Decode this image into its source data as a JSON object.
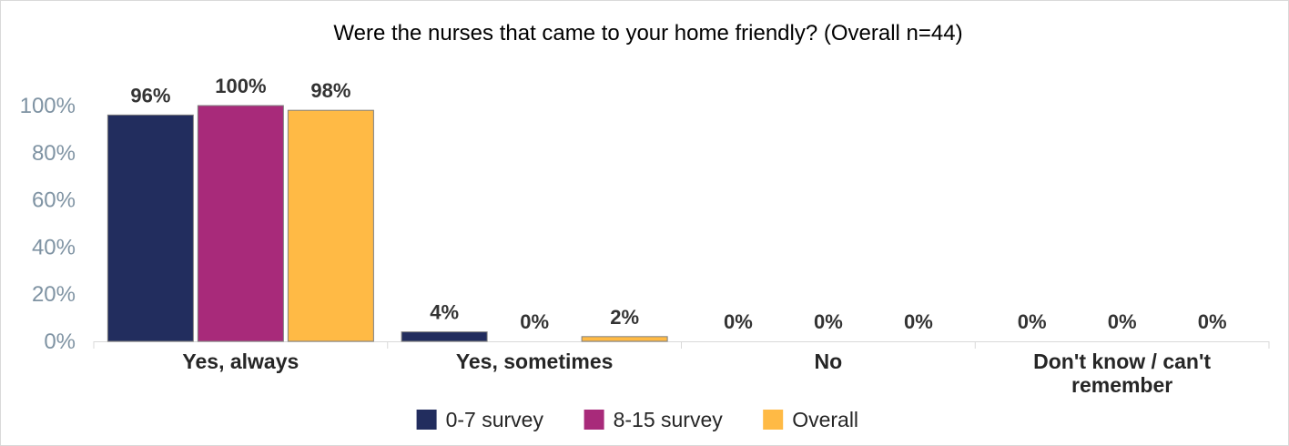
{
  "chart_data": {
    "type": "bar",
    "title": "Were the nurses that came to your home friendly? (Overall n=44)",
    "xlabel": "",
    "ylabel": "",
    "categories": [
      "Yes, always",
      "Yes, sometimes",
      "No",
      "Don't know / can't remember"
    ],
    "series": [
      {
        "name": "0-7 survey",
        "color": "#222d5e",
        "values": [
          96,
          4,
          0,
          0
        ],
        "labels": [
          "96%",
          "4%",
          "0%",
          "0%"
        ]
      },
      {
        "name": "8-15 survey",
        "color": "#a82a7a",
        "values": [
          100,
          0,
          0,
          0
        ],
        "labels": [
          "100%",
          "0%",
          "0%",
          "0%"
        ]
      },
      {
        "name": "Overall",
        "color": "#ffba45",
        "values": [
          98,
          2,
          0,
          0
        ],
        "labels": [
          "98%",
          "2%",
          "0%",
          "0%"
        ]
      }
    ],
    "yticks": [
      "0%",
      "20%",
      "40%",
      "60%",
      "80%",
      "100%"
    ],
    "ylim": [
      0,
      100
    ],
    "grid": false,
    "legend_position": "bottom"
  }
}
